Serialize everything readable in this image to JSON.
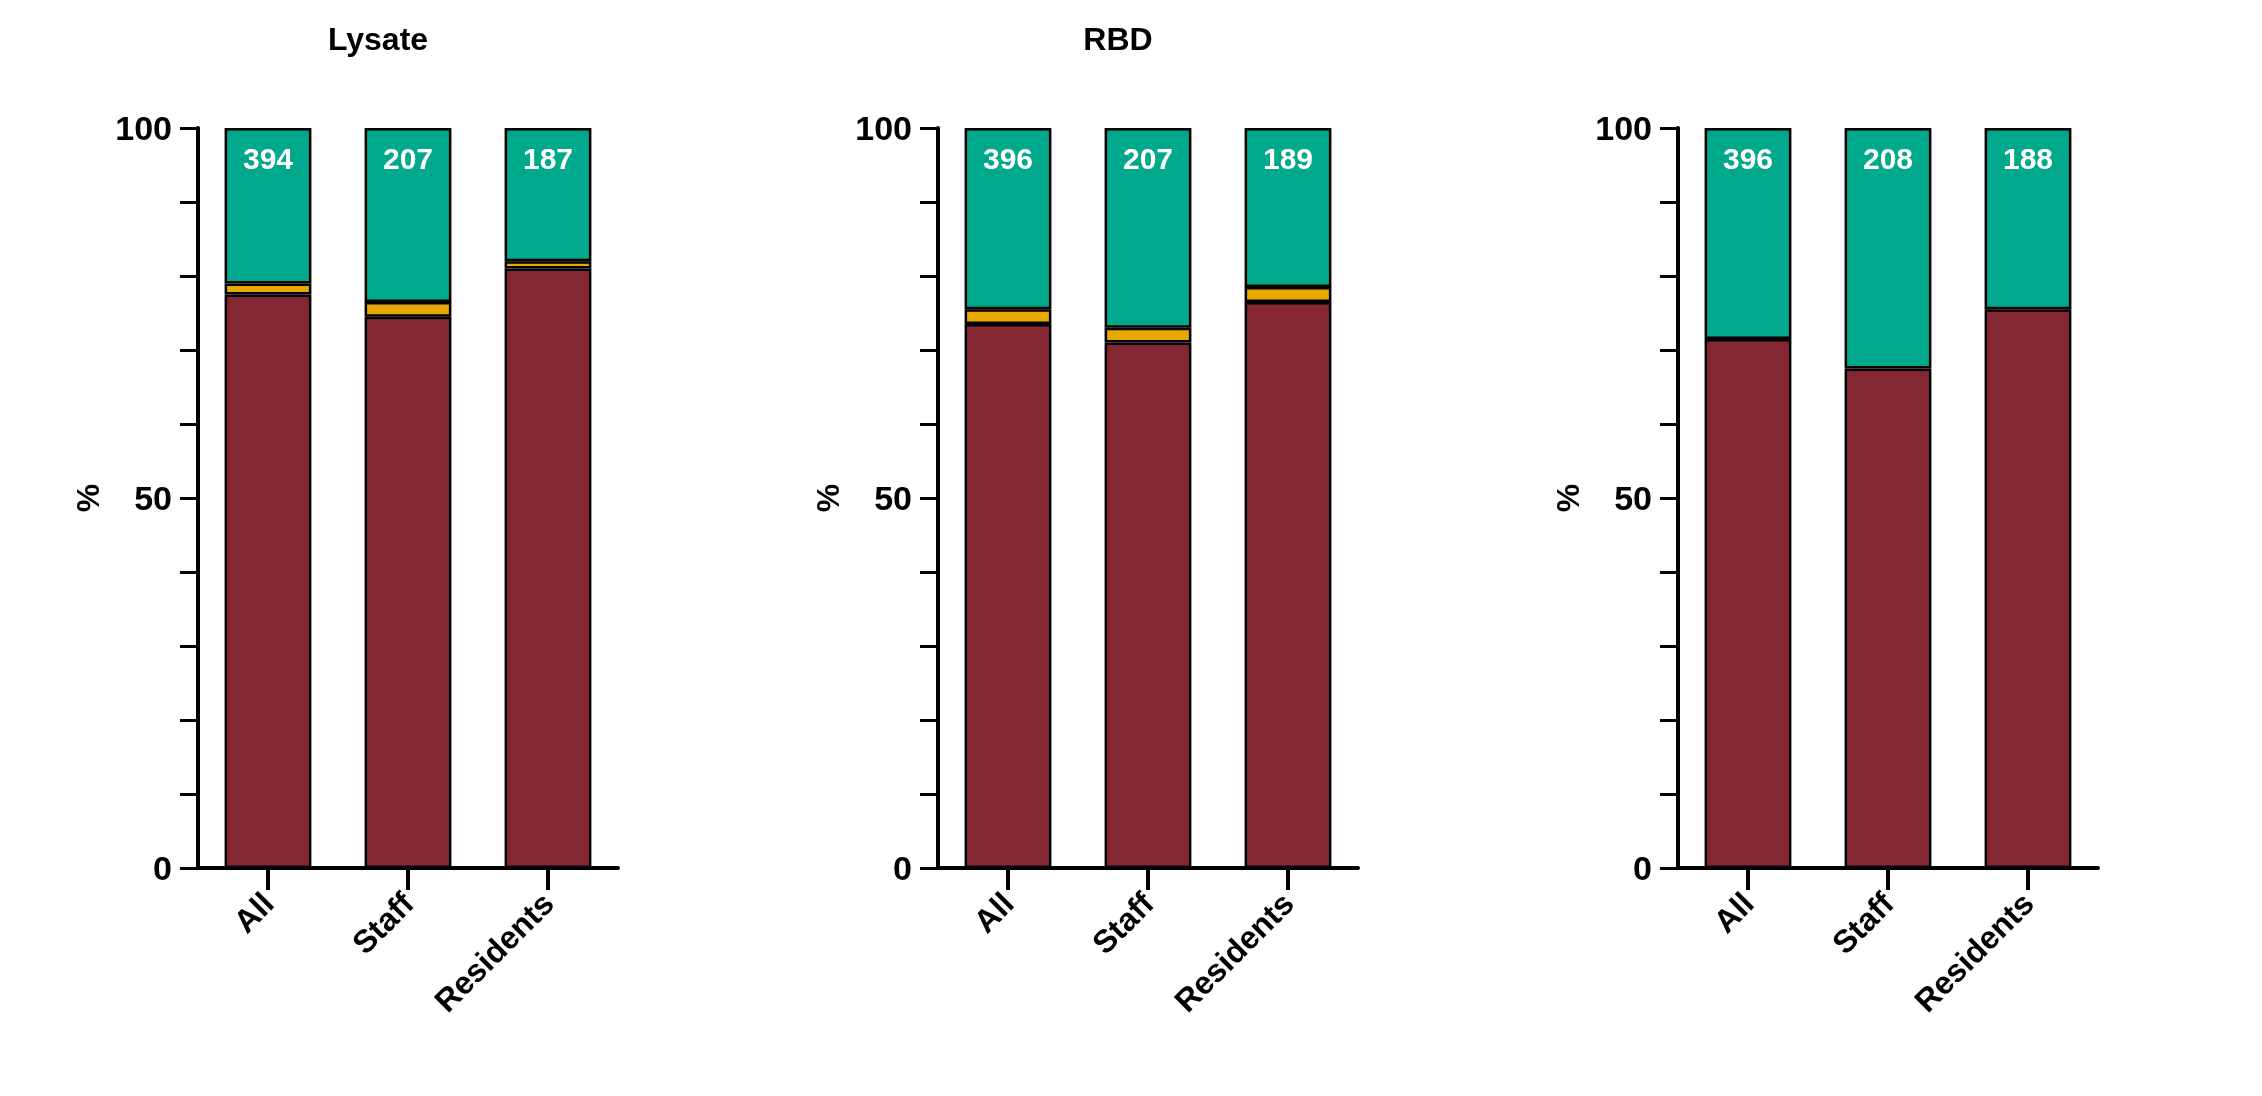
{
  "chart_data": [
    {
      "type": "bar",
      "title": "Lysate",
      "ylabel": "%",
      "categories": [
        "All",
        "Staff",
        "Residents"
      ],
      "stacked": true,
      "ylim": [
        0,
        100
      ],
      "yticks": [
        0,
        50,
        100
      ],
      "grid": false,
      "series": [
        {
          "color": "#852633",
          "values": [
            77.5,
            74.5,
            81
          ]
        },
        {
          "color": "#e8a800",
          "values": [
            1.5,
            2,
            1
          ]
        },
        {
          "color": "#00a98b",
          "values": [
            21,
            23.5,
            18
          ]
        }
      ],
      "annotations": [
        "394",
        "207",
        "187"
      ]
    },
    {
      "type": "bar",
      "title": "RBD",
      "ylabel": "%",
      "categories": [
        "All",
        "Staff",
        "Residents"
      ],
      "stacked": true,
      "ylim": [
        0,
        100
      ],
      "yticks": [
        0,
        50,
        100
      ],
      "grid": false,
      "series": [
        {
          "color": "#852633",
          "values": [
            73.5,
            71,
            76.5
          ]
        },
        {
          "color": "#e8a800",
          "values": [
            2,
            2,
            2
          ]
        },
        {
          "color": "#00a98b",
          "values": [
            24.5,
            27,
            21.5
          ]
        }
      ],
      "annotations": [
        "396",
        "207",
        "189"
      ]
    },
    {
      "type": "bar",
      "ylabel": "%",
      "categories": [
        "All",
        "Staff",
        "Residents"
      ],
      "stacked": true,
      "ylim": [
        0,
        100
      ],
      "yticks": [
        0,
        50,
        100
      ],
      "grid": false,
      "series": [
        {
          "color": "#852633",
          "values": [
            71.5,
            67.5,
            75.5
          ]
        },
        {
          "color": "#00a98b",
          "values": [
            28.5,
            32.5,
            24.5
          ]
        }
      ],
      "annotations": [
        "396",
        "208",
        "188"
      ]
    }
  ]
}
